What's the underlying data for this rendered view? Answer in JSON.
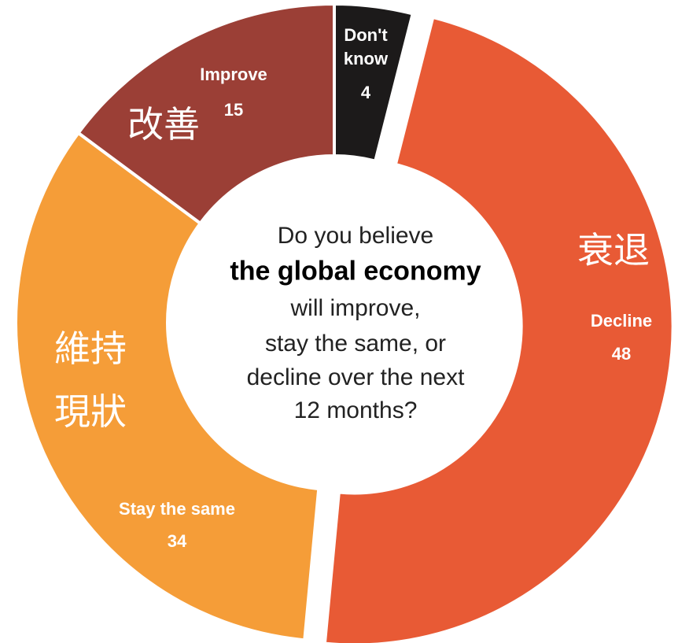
{
  "chart_data": {
    "type": "donut",
    "categories": [
      "Don't know",
      "Decline",
      "Stay the same",
      "Improve"
    ],
    "values": [
      4,
      48,
      34,
      15
    ],
    "colors": [
      "#1c1a1a",
      "#e85a35",
      "#f59d38",
      "#9b3f36"
    ],
    "exploded": "Decline",
    "question": [
      "Do you believe",
      "the global economy",
      "will improve,",
      "stay the same, or",
      "decline over the next",
      "12 months?"
    ],
    "annotations": [
      "改善",
      "衰退",
      "維持",
      "現狀"
    ]
  }
}
